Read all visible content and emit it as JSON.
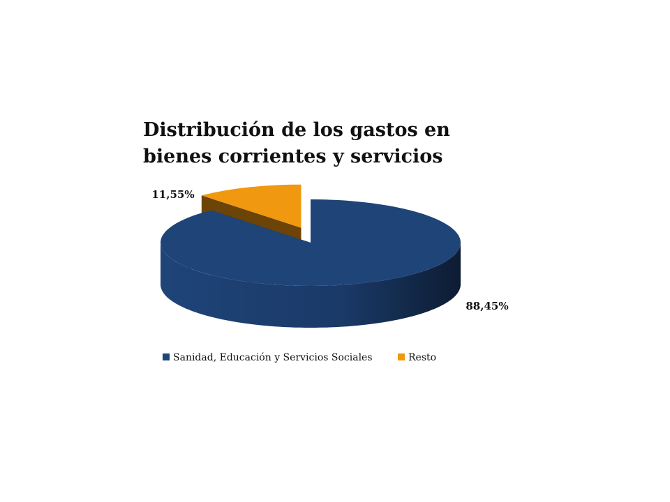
{
  "chart_data": {
    "type": "pie",
    "title": "Distribución de los gastos en bienes corrientes y servicios",
    "categories": [
      "Sanidad, Educación y Servicios Sociales",
      "Resto"
    ],
    "values": [
      88.45,
      11.55
    ],
    "value_labels": [
      "88,45%",
      "11,55%"
    ],
    "colors": [
      "#1f4478",
      "#f0980f"
    ],
    "legend": "bottom"
  }
}
